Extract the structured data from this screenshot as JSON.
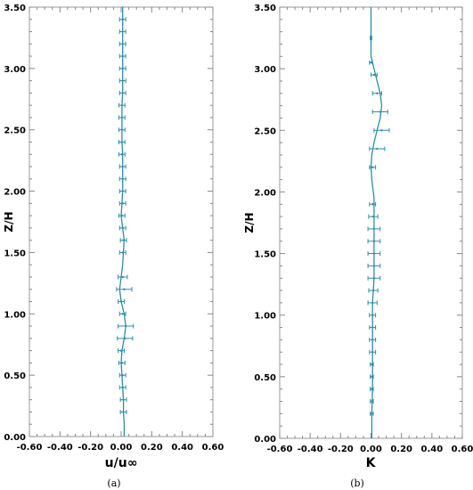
{
  "chart_data": [
    {
      "type": "line",
      "panel_label": "(a)",
      "xlabel": "u/u∞",
      "ylabel": "Z/H",
      "xlim": [
        -0.6,
        0.6
      ],
      "ylim": [
        0,
        3.5
      ],
      "xticks": [
        "-0.60",
        "-0.40",
        "-0.20",
        "0.00",
        "0.20",
        "0.40",
        "0.60"
      ],
      "yticks": [
        "0.00",
        "0.50",
        "1.00",
        "1.50",
        "2.00",
        "2.50",
        "3.00",
        "3.50"
      ],
      "grid": false,
      "line_color": "#2a8fa8",
      "series": [
        {
          "x": [
            0.02,
            0.02,
            0.015,
            0.015,
            0.01,
            0.005,
            0.0,
            0.005,
            0.02,
            0.03,
            0.02,
            0.0,
            -0.01,
            0.0,
            0.01,
            0.02,
            0.01,
            0.0,
            0.005,
            0.01,
            0.01,
            0.01,
            0.01,
            0.005,
            0.005,
            0.005,
            0.005,
            0.01,
            0.01,
            0.01,
            0.01,
            0.01,
            0.01,
            0.01,
            0.01,
            0.01,
            0.005
          ],
          "y": [
            0.0,
            0.1,
            0.2,
            0.3,
            0.4,
            0.5,
            0.6,
            0.7,
            0.8,
            0.9,
            1.0,
            1.1,
            1.2,
            1.3,
            1.4,
            1.6,
            1.7,
            1.8,
            1.9,
            2.0,
            2.1,
            2.2,
            2.3,
            2.4,
            2.5,
            2.6,
            2.7,
            2.8,
            2.9,
            3.0,
            3.1,
            3.2,
            3.3,
            3.4,
            3.5,
            3.5,
            3.5
          ]
        }
      ],
      "error_bars": {
        "y": [
          0.2,
          0.3,
          0.4,
          0.5,
          0.6,
          0.7,
          0.8,
          0.9,
          1.0,
          1.1,
          1.2,
          1.3,
          1.5,
          1.6,
          1.7,
          1.8,
          1.9,
          2.0,
          2.1,
          2.2,
          2.3,
          2.4,
          2.5,
          2.6,
          2.7,
          2.8,
          2.9,
          3.0,
          3.1,
          3.2,
          3.3,
          3.4
        ],
        "x": [
          0.015,
          0.015,
          0.01,
          0.01,
          0.005,
          0.0,
          0.025,
          0.03,
          0.01,
          0.0,
          0.02,
          0.01,
          0.01,
          0.015,
          0.01,
          0.005,
          0.01,
          0.01,
          0.01,
          0.01,
          0.005,
          0.005,
          0.005,
          0.005,
          0.005,
          0.01,
          0.01,
          0.01,
          0.01,
          0.01,
          0.01,
          0.01
        ],
        "err": [
          0.02,
          0.02,
          0.02,
          0.02,
          0.02,
          0.02,
          0.05,
          0.05,
          0.02,
          0.02,
          0.05,
          0.03,
          0.02,
          0.02,
          0.02,
          0.02,
          0.02,
          0.02,
          0.02,
          0.02,
          0.02,
          0.02,
          0.02,
          0.02,
          0.02,
          0.02,
          0.02,
          0.02,
          0.02,
          0.02,
          0.02,
          0.02
        ]
      }
    },
    {
      "type": "line",
      "panel_label": "(b)",
      "xlabel": "K",
      "ylabel": "Z/H",
      "xlim": [
        -0.6,
        0.6
      ],
      "ylim": [
        0,
        3.5
      ],
      "xticks": [
        "-0.60",
        "-0.40",
        "-0.20",
        "0.00",
        "0.20",
        "0.40",
        "0.60"
      ],
      "yticks": [
        "0.00",
        "0.50",
        "1.00",
        "1.50",
        "2.00",
        "2.50",
        "3.00",
        "3.50"
      ],
      "grid": false,
      "line_color": "#2a8fa8",
      "series": [
        {
          "x": [
            0.005,
            0.005,
            0.01,
            0.01,
            0.01,
            0.01,
            0.01,
            0.015,
            0.02,
            0.02,
            0.02,
            0.02,
            0.02,
            0.02,
            0.02,
            0.02,
            0.015,
            0.01,
            0.005,
            0.0,
            0.005,
            0.02,
            0.04,
            0.06,
            0.07,
            0.06,
            0.04,
            0.02,
            0.0,
            0.0,
            0.0,
            0.0
          ],
          "y": [
            0.0,
            0.2,
            0.4,
            0.6,
            0.8,
            1.0,
            1.1,
            1.2,
            1.3,
            1.4,
            1.5,
            1.6,
            1.7,
            1.8,
            1.9,
            1.95,
            2.0,
            2.05,
            2.1,
            2.2,
            2.3,
            2.4,
            2.5,
            2.6,
            2.7,
            2.8,
            2.9,
            3.0,
            3.1,
            3.2,
            3.3,
            3.5
          ]
        }
      ],
      "error_bars": {
        "y": [
          0.2,
          0.3,
          0.4,
          0.5,
          0.6,
          0.7,
          0.8,
          0.9,
          1.0,
          1.1,
          1.2,
          1.3,
          1.4,
          1.5,
          1.6,
          1.7,
          1.8,
          1.9,
          2.2,
          2.35,
          2.5,
          2.65,
          2.8,
          2.95,
          3.05,
          3.25
        ],
        "x": [
          0.005,
          0.005,
          0.005,
          0.005,
          0.005,
          0.01,
          0.01,
          0.01,
          0.01,
          0.01,
          0.015,
          0.02,
          0.02,
          0.02,
          0.02,
          0.02,
          0.015,
          0.01,
          0.01,
          0.04,
          0.07,
          0.06,
          0.04,
          0.02,
          0.0,
          0.0
        ],
        "err": [
          0.01,
          0.01,
          0.01,
          0.01,
          0.01,
          0.02,
          0.02,
          0.02,
          0.02,
          0.03,
          0.03,
          0.04,
          0.04,
          0.04,
          0.04,
          0.04,
          0.03,
          0.02,
          0.02,
          0.05,
          0.05,
          0.05,
          0.03,
          0.02,
          0.01,
          0.005
        ]
      }
    }
  ]
}
